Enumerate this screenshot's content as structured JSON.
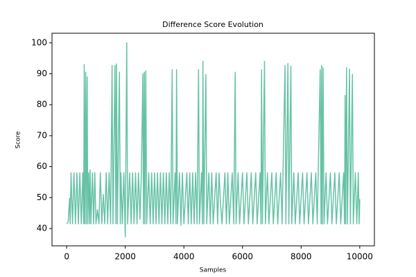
{
  "chart_data": {
    "type": "line",
    "title": "Difference Score Evolution",
    "xlabel": "Samples",
    "ylabel": "Score",
    "color": "#66c2a5",
    "xlim": [
      -500,
      10500
    ],
    "ylim": [
      34.4,
      103.1
    ],
    "xticks": [
      0,
      2000,
      4000,
      6000,
      8000,
      10000
    ],
    "yticks": [
      40,
      50,
      60,
      70,
      80,
      90,
      100
    ],
    "x": [
      0,
      50,
      100,
      120,
      150,
      200,
      250,
      300,
      350,
      400,
      450,
      500,
      550,
      580,
      600,
      620,
      650,
      670,
      700,
      720,
      750,
      780,
      800,
      830,
      880,
      920,
      960,
      1000,
      1050,
      1100,
      1150,
      1200,
      1250,
      1300,
      1350,
      1400,
      1450,
      1500,
      1550,
      1580,
      1650,
      1680,
      1700,
      1730,
      1800,
      1830,
      1850,
      1900,
      1950,
      2000,
      2050,
      2080,
      2150,
      2200,
      2250,
      2300,
      2350,
      2400,
      2450,
      2500,
      2550,
      2600,
      2620,
      2650,
      2670,
      2700,
      2730,
      2800,
      2850,
      2900,
      2950,
      3000,
      3050,
      3100,
      3150,
      3200,
      3250,
      3300,
      3350,
      3400,
      3450,
      3500,
      3550,
      3600,
      3630,
      3700,
      3730,
      3750,
      3780,
      3850,
      3900,
      3950,
      4000,
      4100,
      4150,
      4200,
      4250,
      4300,
      4350,
      4400,
      4450,
      4500,
      4530,
      4600,
      4630,
      4650,
      4680,
      4750,
      4780,
      4850,
      4900,
      4950,
      5000,
      5100,
      5150,
      5200,
      5250,
      5300,
      5400,
      5450,
      5500,
      5550,
      5650,
      5700,
      5750,
      5780,
      5850,
      5900,
      6000,
      6050,
      6150,
      6200,
      6300,
      6350,
      6450,
      6500,
      6600,
      6630,
      6650,
      6680,
      6750,
      6780,
      6850,
      6900,
      7000,
      7050,
      7150,
      7200,
      7300,
      7350,
      7450,
      7480,
      7550,
      7580,
      7650,
      7680,
      7750,
      7800,
      7900,
      7950,
      8050,
      8100,
      8200,
      8250,
      8350,
      8400,
      8500,
      8550,
      8650,
      8680,
      8700,
      8720,
      8750,
      8780,
      8850,
      8900,
      9000,
      9050,
      9150,
      9200,
      9300,
      9350,
      9450,
      9480,
      9500,
      9520,
      9550,
      9580,
      9650,
      9680,
      9750,
      9780,
      9850,
      9900,
      9950,
      9980,
      10000
    ],
    "values": [
      41.5,
      42,
      49.8,
      41.5,
      58,
      41.5,
      58,
      41.5,
      58,
      41.5,
      58,
      41.5,
      58,
      41.5,
      93,
      41.5,
      90.5,
      41.5,
      89,
      41.5,
      58,
      41.5,
      59,
      41.5,
      58,
      41.5,
      58,
      41.5,
      46,
      41.5,
      58,
      41.5,
      51,
      41.5,
      58,
      41.5,
      58,
      41.5,
      92.7,
      41.5,
      92.7,
      41.5,
      93.2,
      41.5,
      90.5,
      41.5,
      58,
      41.5,
      58,
      37.3,
      100,
      41.5,
      58,
      41.5,
      58,
      41.5,
      58,
      41.5,
      58,
      43,
      58,
      90,
      41.5,
      90.5,
      41.5,
      91,
      41.5,
      58,
      41.5,
      58,
      41.5,
      58,
      41.5,
      58,
      41.5,
      58,
      41.5,
      58,
      41.5,
      58,
      41.5,
      58,
      41.5,
      91.3,
      41.5,
      58,
      41.5,
      91.3,
      41.5,
      58,
      41,
      58,
      41.5,
      58,
      41.5,
      58,
      41.5,
      58,
      41.5,
      58,
      41.5,
      91.3,
      41.5,
      58,
      41.5,
      94,
      41.5,
      89.8,
      41.5,
      58,
      41.5,
      58,
      41.5,
      58,
      41.5,
      58,
      48,
      41.5,
      58,
      41.5,
      58,
      41.5,
      58,
      41.5,
      90.5,
      41.5,
      58,
      41.5,
      58,
      41.5,
      58,
      41.5,
      58,
      41.5,
      58,
      41.5,
      58,
      41.5,
      91.3,
      41.5,
      94,
      41.5,
      58,
      41.5,
      58,
      41.5,
      58,
      41.5,
      58,
      41.5,
      92.7,
      41.5,
      93.3,
      41.5,
      92.5,
      41.5,
      58,
      41.5,
      58,
      41.5,
      58,
      41.5,
      58,
      41.5,
      58,
      41.5,
      58,
      41.5,
      91.3,
      41.5,
      92.7,
      41.5,
      92,
      41.5,
      58,
      41.5,
      58,
      41.5,
      58,
      41.5,
      58,
      41.5,
      58,
      41.5,
      83,
      41.5,
      92,
      41.5,
      91.5,
      41.5,
      89.8,
      41.5,
      58,
      41.5,
      58,
      41.5,
      49.5
    ]
  }
}
